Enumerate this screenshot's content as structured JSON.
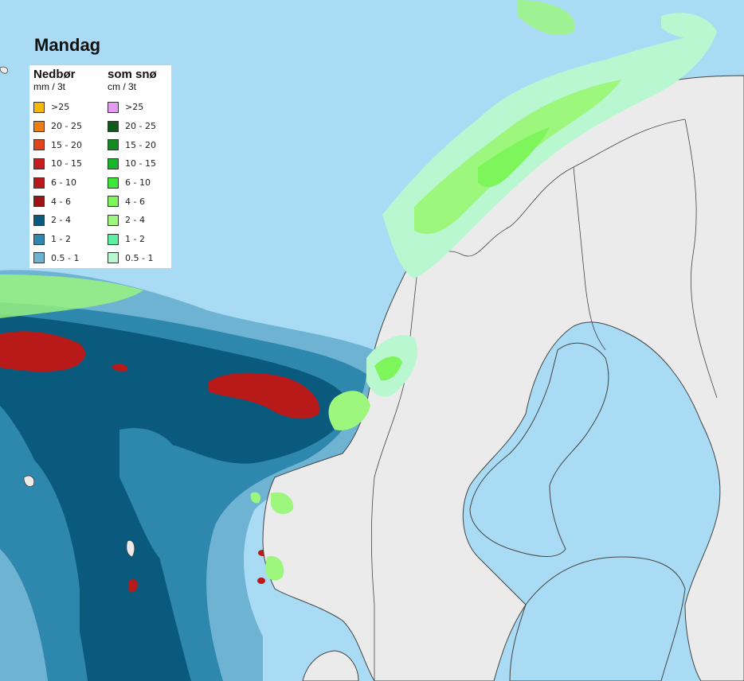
{
  "title": "Mandag",
  "legend": {
    "rain": {
      "heading": "Nedbør",
      "unit": "mm / 3t",
      "items": [
        {
          "label": ">25",
          "color": "#f5b800"
        },
        {
          "label": "20 - 25",
          "color": "#f07d10"
        },
        {
          "label": "15 - 20",
          "color": "#e0451c"
        },
        {
          "label": "10 - 15",
          "color": "#c41e1e"
        },
        {
          "label": "6 - 10",
          "color": "#b81a1a"
        },
        {
          "label": "4 - 6",
          "color": "#9e1414"
        },
        {
          "label": "2 - 4",
          "color": "#0a5a7e"
        },
        {
          "label": "1 - 2",
          "color": "#2e87ad"
        },
        {
          "label": "0.5 - 1",
          "color": "#6fb3d3"
        }
      ]
    },
    "snow": {
      "heading": "som snø",
      "unit": "cm / 3t",
      "items": [
        {
          "label": ">25",
          "color": "#e39df0"
        },
        {
          "label": "20 - 25",
          "color": "#0f5a1a"
        },
        {
          "label": "15 - 20",
          "color": "#138a22"
        },
        {
          "label": "10 - 15",
          "color": "#1bb52d"
        },
        {
          "label": "6 - 10",
          "color": "#3ee83a"
        },
        {
          "label": "4 - 6",
          "color": "#7ef55a"
        },
        {
          "label": "2 - 4",
          "color": "#9cf77c"
        },
        {
          "label": "1 - 2",
          "color": "#5ef0a0"
        },
        {
          "label": "0.5 - 1",
          "color": "#b8f7d0"
        }
      ]
    }
  },
  "colors": {
    "sea": "#a9dbf4",
    "land": "#ebebeb",
    "border": "#444444"
  }
}
